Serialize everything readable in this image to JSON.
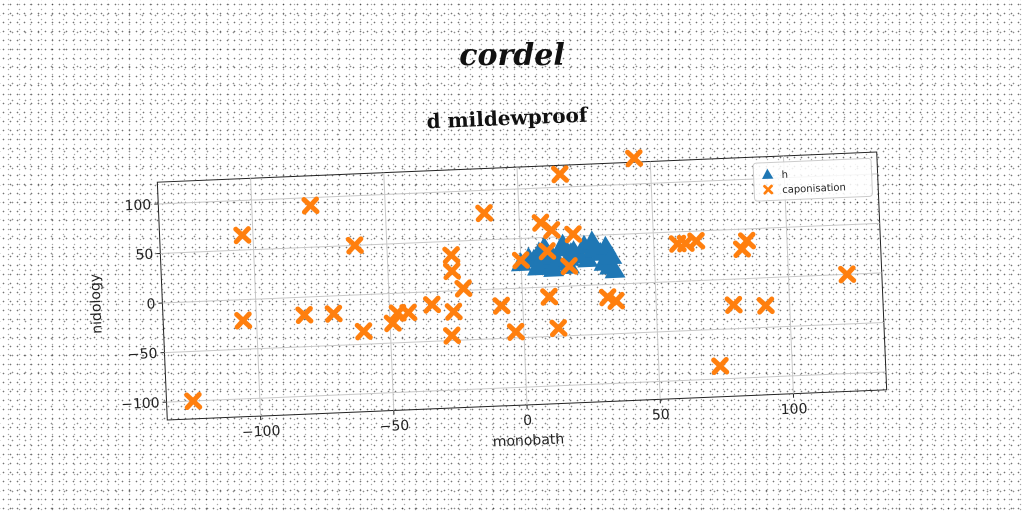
{
  "header": {
    "title": "cordel"
  },
  "colors": {
    "series_h": "#1f77b4",
    "series_caponisation": "#ff7f0e",
    "grid": "#c8c8c8",
    "frame": "#222222"
  },
  "chart_data": {
    "type": "scatter",
    "title": "d mildewproof",
    "xlabel": "monobath",
    "ylabel": "nidology",
    "xlim": [
      -135,
      135
    ],
    "ylim": [
      -118,
      122
    ],
    "xticks": [
      -100,
      -50,
      0,
      50,
      100
    ],
    "yticks": [
      -100,
      -50,
      0,
      50,
      100
    ],
    "xtick_labels": [
      "−100",
      "−50",
      "0",
      "50",
      "100"
    ],
    "ytick_labels": [
      "−100",
      "−50",
      "0",
      "50",
      "100"
    ],
    "grid": true,
    "legend_position": "top-right",
    "series": [
      {
        "name": "h",
        "marker": "triangle",
        "points": [
          [
            0,
            25
          ],
          [
            3,
            30
          ],
          [
            5,
            28
          ],
          [
            7,
            35
          ],
          [
            8,
            22
          ],
          [
            9,
            40
          ],
          [
            10,
            26
          ],
          [
            12,
            30
          ],
          [
            14,
            24
          ],
          [
            15,
            38
          ],
          [
            16,
            42
          ],
          [
            18,
            28
          ],
          [
            19,
            33
          ],
          [
            20,
            35
          ],
          [
            22,
            30
          ],
          [
            24,
            40
          ],
          [
            25,
            26
          ],
          [
            27,
            44
          ],
          [
            28,
            36
          ],
          [
            30,
            32
          ],
          [
            31,
            22
          ],
          [
            32,
            38
          ],
          [
            33,
            18
          ],
          [
            34,
            28
          ],
          [
            35,
            14
          ],
          [
            12,
            18
          ],
          [
            18,
            20
          ],
          [
            6,
            20
          ]
        ]
      },
      {
        "name": "caponisation",
        "marker": "x",
        "points": [
          [
            -125,
            -100
          ],
          [
            -104,
            65
          ],
          [
            -105,
            -21
          ],
          [
            -78,
            92
          ],
          [
            -82,
            -18
          ],
          [
            -71,
            -18
          ],
          [
            -62,
            50
          ],
          [
            -60,
            -37
          ],
          [
            -49,
            -30
          ],
          [
            -47,
            -20
          ],
          [
            -43,
            -20
          ],
          [
            -34,
            -13
          ],
          [
            -26,
            36
          ],
          [
            -26,
            20
          ],
          [
            -26,
            -21
          ],
          [
            -22,
            2
          ],
          [
            -27,
            -45
          ],
          [
            -13,
            77
          ],
          [
            -8,
            -17
          ],
          [
            -3,
            -44
          ],
          [
            0,
            28
          ],
          [
            8,
            65
          ],
          [
            10,
            36
          ],
          [
            12,
            57
          ],
          [
            20,
            52
          ],
          [
            18,
            20
          ],
          [
            10,
            -10
          ],
          [
            13,
            -42
          ],
          [
            16,
            113
          ],
          [
            32,
            -13
          ],
          [
            35,
            -17
          ],
          [
            44,
            126
          ],
          [
            59,
            38
          ],
          [
            62,
            38
          ],
          [
            66,
            40
          ],
          [
            79,
            -26
          ],
          [
            83,
            30
          ],
          [
            85,
            38
          ],
          [
            91,
            -28
          ],
          [
            73,
            -87
          ],
          [
            122,
            0
          ]
        ]
      }
    ]
  }
}
